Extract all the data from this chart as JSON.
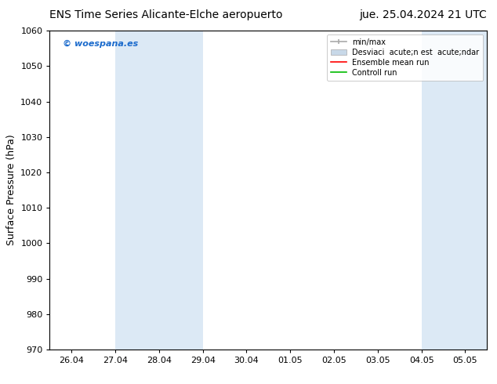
{
  "title_left": "ENS Time Series Alicante-Elche aeropuerto",
  "title_right": "jue. 25.04.2024 21 UTC",
  "ylabel": "Surface Pressure (hPa)",
  "ylim": [
    970,
    1060
  ],
  "yticks": [
    970,
    980,
    990,
    1000,
    1010,
    1020,
    1030,
    1040,
    1050,
    1060
  ],
  "xtick_labels": [
    "26.04",
    "27.04",
    "28.04",
    "29.04",
    "30.04",
    "01.05",
    "02.05",
    "03.05",
    "04.05",
    "05.05"
  ],
  "xtick_positions": [
    0,
    1,
    2,
    3,
    4,
    5,
    6,
    7,
    8,
    9
  ],
  "xlim": [
    -0.5,
    9.5
  ],
  "shaded_bands": [
    {
      "xmin": 1,
      "xmax": 3,
      "color": "#dce9f5"
    },
    {
      "xmin": 8,
      "xmax": 9.5,
      "color": "#dce9f5"
    }
  ],
  "watermark": "© woespana.es",
  "watermark_color": "#1a6acc",
  "bg_color": "#ffffff",
  "plot_bg_color": "#ffffff",
  "legend_labels": [
    "min/max",
    "Desviaci  acute;n est  acute;ndar",
    "Ensemble mean run",
    "Controll run"
  ],
  "legend_minmax_color": "#aaaaaa",
  "legend_std_color": "#c8d8e8",
  "legend_ens_color": "#ff0000",
  "legend_ctrl_color": "#00bb00",
  "axis_color": "#000000",
  "grid_color": "#dddddd",
  "title_fontsize": 10,
  "tick_fontsize": 8,
  "ylabel_fontsize": 9,
  "watermark_fontsize": 8,
  "legend_fontsize": 7
}
